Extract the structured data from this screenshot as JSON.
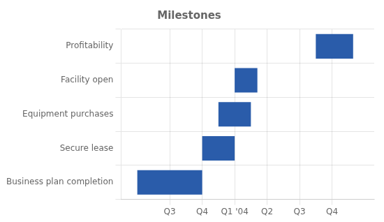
{
  "chart_data": {
    "type": "bar",
    "orientation": "horizontal",
    "title": "Milestones",
    "categories": [
      "Business plan completion",
      "Secure lease",
      "Equipment purchases",
      "Facility open",
      "Profitability"
    ],
    "values": [
      [
        -1.0,
        1.0
      ],
      [
        1.0,
        2.0
      ],
      [
        1.5,
        2.5
      ],
      [
        2.0,
        2.7
      ],
      [
        4.5,
        5.65
      ]
    ],
    "color": "#2a5caa",
    "xlim": [
      -1.5,
      6.3
    ],
    "xticks": [
      {
        "value": 0,
        "label": "Q3"
      },
      {
        "value": 1,
        "label": "Q4"
      },
      {
        "value": 2,
        "label": "Q1 '04"
      },
      {
        "value": 3,
        "label": "Q2"
      },
      {
        "value": 4,
        "label": "Q3"
      },
      {
        "value": 5,
        "label": "Q4"
      }
    ],
    "grid": true
  }
}
